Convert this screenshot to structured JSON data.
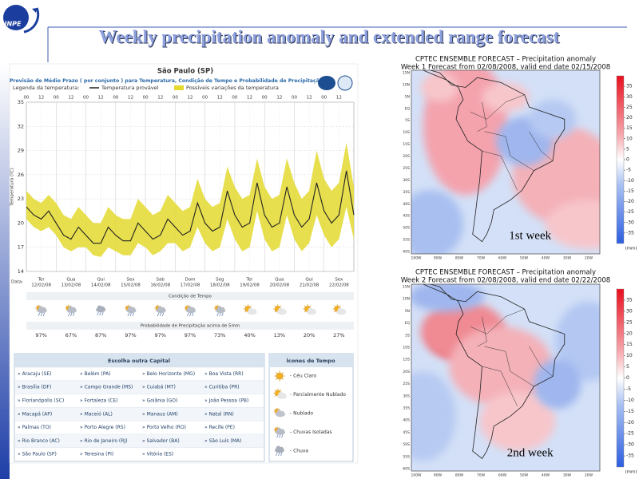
{
  "slide": {
    "title": "Weekly precipitation anomaly and extended range forecast",
    "logo": "INPE"
  },
  "forecast": {
    "city": "São Paulo (SP)",
    "subtitle": "Previsão de Médio Prazo ( por conjunto ) para Temperatura, Condição de Tempo e Probabilidade de Precipitação",
    "legend_title": "Legenda da temperatura:",
    "date_label": "Data:",
    "condition_header": "Condição de Tempo",
    "probability_header": "Probabilidade de Precipitação acima de 5mm",
    "hours": [
      "00",
      "12",
      "00",
      "12",
      "00",
      "12",
      "00",
      "12",
      "00",
      "12",
      "00",
      "12",
      "00",
      "12",
      "00",
      "12",
      "00",
      "12",
      "00",
      "12",
      "00",
      "12"
    ],
    "days": [
      {
        "weekday": "Ter",
        "date": "12/02/08"
      },
      {
        "weekday": "Qua",
        "date": "13/02/08"
      },
      {
        "weekday": "Qui",
        "date": "14/02/08"
      },
      {
        "weekday": "Sex",
        "date": "15/02/08"
      },
      {
        "weekday": "Sab",
        "date": "16/02/08"
      },
      {
        "weekday": "Dom",
        "date": "17/02/08"
      },
      {
        "weekday": "Seg",
        "date": "18/02/08"
      },
      {
        "weekday": "Ter",
        "date": "19/02/08"
      },
      {
        "weekday": "Qua",
        "date": "20/02/08"
      },
      {
        "weekday": "Qui",
        "date": "21/02/08"
      },
      {
        "weekday": "Sex",
        "date": "22/02/08"
      }
    ],
    "probability": {
      "values": [
        97,
        67,
        87,
        97,
        97,
        97,
        73,
        40,
        13,
        20,
        27
      ],
      "value_labels": [
        "97%",
        "67%",
        "87%",
        "97%",
        "97%",
        "97%",
        "73%",
        "40%",
        "13%",
        "20%",
        "27%"
      ]
    }
  },
  "chart_data": {
    "type": "line",
    "ylabel": "Temperatura (ºC)",
    "ylim": [
      14,
      35
    ],
    "yticks": [
      14,
      17,
      20,
      23,
      26,
      29,
      32,
      35
    ],
    "grid": true,
    "band": {
      "name": "Possíveis variações da temperatura",
      "color": "#e3d92f",
      "low": [
        20.5,
        19.5,
        19,
        19.5,
        18.5,
        17,
        16.5,
        17,
        17,
        16,
        15.8,
        17,
        16.5,
        16,
        16,
        17.5,
        17,
        16,
        16.5,
        17.5,
        17.5,
        16.5,
        17,
        19.5,
        17.5,
        16.5,
        17,
        20.5,
        18,
        16.5,
        17,
        21.5,
        18,
        16.5,
        17,
        21,
        18,
        16.5,
        17.5,
        21,
        18.5,
        17,
        18,
        22,
        18
      ],
      "high": [
        24,
        23,
        22.5,
        23.5,
        22.5,
        21,
        20.5,
        22,
        21,
        20,
        20,
        22,
        21,
        20.5,
        20.5,
        23,
        22,
        21,
        21.5,
        23.5,
        22.5,
        21.5,
        22,
        25.5,
        23,
        22,
        22.5,
        27,
        24.5,
        23,
        23.5,
        28,
        24.5,
        23,
        23.5,
        28,
        25,
        23,
        24,
        29,
        25.5,
        24,
        25,
        30,
        24.5
      ]
    },
    "series": [
      {
        "name": "Temperatura provável",
        "color": "#222222",
        "values": [
          22,
          21,
          20.5,
          21.5,
          20,
          18.5,
          18,
          19.5,
          18.5,
          17.5,
          17.5,
          19.5,
          18.5,
          17.8,
          17.8,
          20,
          19,
          18,
          18.5,
          20.5,
          19.5,
          18.5,
          19,
          22.5,
          20,
          19,
          19.5,
          24,
          21,
          19.5,
          20,
          25,
          21,
          19.5,
          20,
          24.5,
          21,
          19.5,
          20.5,
          25,
          21.5,
          20,
          21,
          26.5,
          21
        ]
      }
    ]
  },
  "capitals": {
    "header": "Escolha outra Capital",
    "rows": [
      [
        "» Aracaju (SE)",
        "» Belém (PA)",
        "» Belo Horizonte (MG)",
        "» Boa Vista (RR)"
      ],
      [
        "» Brasília (DF)",
        "» Campo Grande (MS)",
        "» Cuiabá (MT)",
        "» Curitiba (PR)"
      ],
      [
        "» Florianópolis (SC)",
        "» Fortaleza (CE)",
        "» Goiânia (GO)",
        "» João Pessoa (PB)"
      ],
      [
        "» Macapá (AP)",
        "» Maceió (AL)",
        "» Manaus (AM)",
        "» Natal (RN)"
      ],
      [
        "» Palmas (TO)",
        "» Porto Alegre (RS)",
        "» Porto Velho (RO)",
        "» Recife (PE)"
      ],
      [
        "» Rio Branco (AC)",
        "» Rio de Janeiro (RJ)",
        "» Salvador (BA)",
        "» São Luís (MA)"
      ],
      [
        "» São Paulo (SP)",
        "» Teresina (PI)",
        "» Vitória (ES)"
      ]
    ]
  },
  "icons_legend": {
    "header": "Ícones de Tempo",
    "items": [
      "- Céu Claro",
      "- Parcialmente Nublado",
      "- Nublado",
      "- Chuvas Isoladas",
      "- Chuva"
    ]
  },
  "maps": {
    "lat_labels": [
      "15N",
      "10N",
      "5N",
      "EQ",
      "5S",
      "10S",
      "15S",
      "20S",
      "25S",
      "30S",
      "35S",
      "40S",
      "45S",
      "50S",
      "55S",
      "60S"
    ],
    "lon_labels": [
      "100W",
      "90W",
      "80W",
      "70W",
      "60W",
      "50W",
      "40W",
      "30W",
      "20W"
    ],
    "colorbar": {
      "clim": [
        -40,
        40
      ],
      "ticks": [
        35,
        30,
        25,
        20,
        15,
        10,
        5,
        0,
        -5,
        -10,
        -15,
        -20,
        -25,
        -30,
        -35
      ],
      "unit": "(mm)"
    },
    "panels": [
      {
        "title": "CPTEC ENSEMBLE FORECAST – Precipitation anomaly",
        "subtitle": "Week 1 Forecast from 02/08/2008, valid end date 02/15/2008",
        "label": "1st week"
      },
      {
        "title": "CPTEC ENSEMBLE FORECAST – Precipitation anomaly",
        "subtitle": "Week 2 Forecast from 02/08/2008, valid end date 02/22/2008",
        "label": "2nd week"
      }
    ]
  }
}
